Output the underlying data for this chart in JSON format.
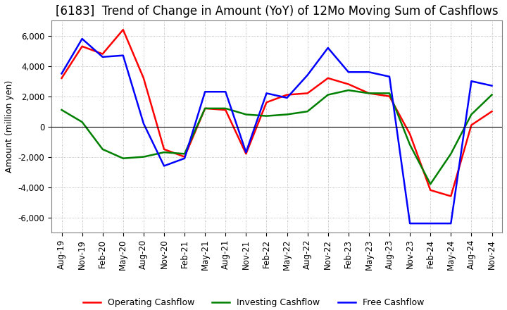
{
  "title": "[6183]  Trend of Change in Amount (YoY) of 12Mo Moving Sum of Cashflows",
  "ylabel": "Amount (million yen)",
  "ylim": [
    -7000,
    7000
  ],
  "yticks": [
    -6000,
    -4000,
    -2000,
    0,
    2000,
    4000,
    6000
  ],
  "x_labels": [
    "Aug-19",
    "Nov-19",
    "Feb-20",
    "May-20",
    "Aug-20",
    "Nov-20",
    "Feb-21",
    "May-21",
    "Aug-21",
    "Nov-21",
    "Feb-22",
    "May-22",
    "Aug-22",
    "Nov-22",
    "Feb-23",
    "May-23",
    "Aug-23",
    "Nov-23",
    "Feb-24",
    "May-24",
    "Aug-24",
    "Nov-24"
  ],
  "operating": [
    3200,
    5300,
    4800,
    6400,
    3200,
    -1500,
    -2000,
    1200,
    1100,
    -1800,
    1600,
    2100,
    2200,
    3200,
    2800,
    2200,
    2000,
    -500,
    -4200,
    -4600,
    100,
    1000
  ],
  "investing": [
    1100,
    300,
    -1500,
    -2100,
    -2000,
    -1700,
    -1800,
    1200,
    1200,
    800,
    700,
    800,
    1000,
    2100,
    2400,
    2200,
    2200,
    -1200,
    -3800,
    -1800,
    800,
    2100
  ],
  "free": [
    3500,
    5800,
    4600,
    4700,
    200,
    -2600,
    -2100,
    2300,
    2300,
    -1700,
    2200,
    1900,
    3400,
    5200,
    3600,
    3600,
    3300,
    -6400,
    -6400,
    -6400,
    3000,
    2700
  ],
  "operating_color": "#FF0000",
  "investing_color": "#008000",
  "free_color": "#0000FF",
  "background_color": "#FFFFFF",
  "grid_color": "#AAAAAA",
  "title_fontsize": 12,
  "label_fontsize": 9,
  "tick_fontsize": 8.5
}
